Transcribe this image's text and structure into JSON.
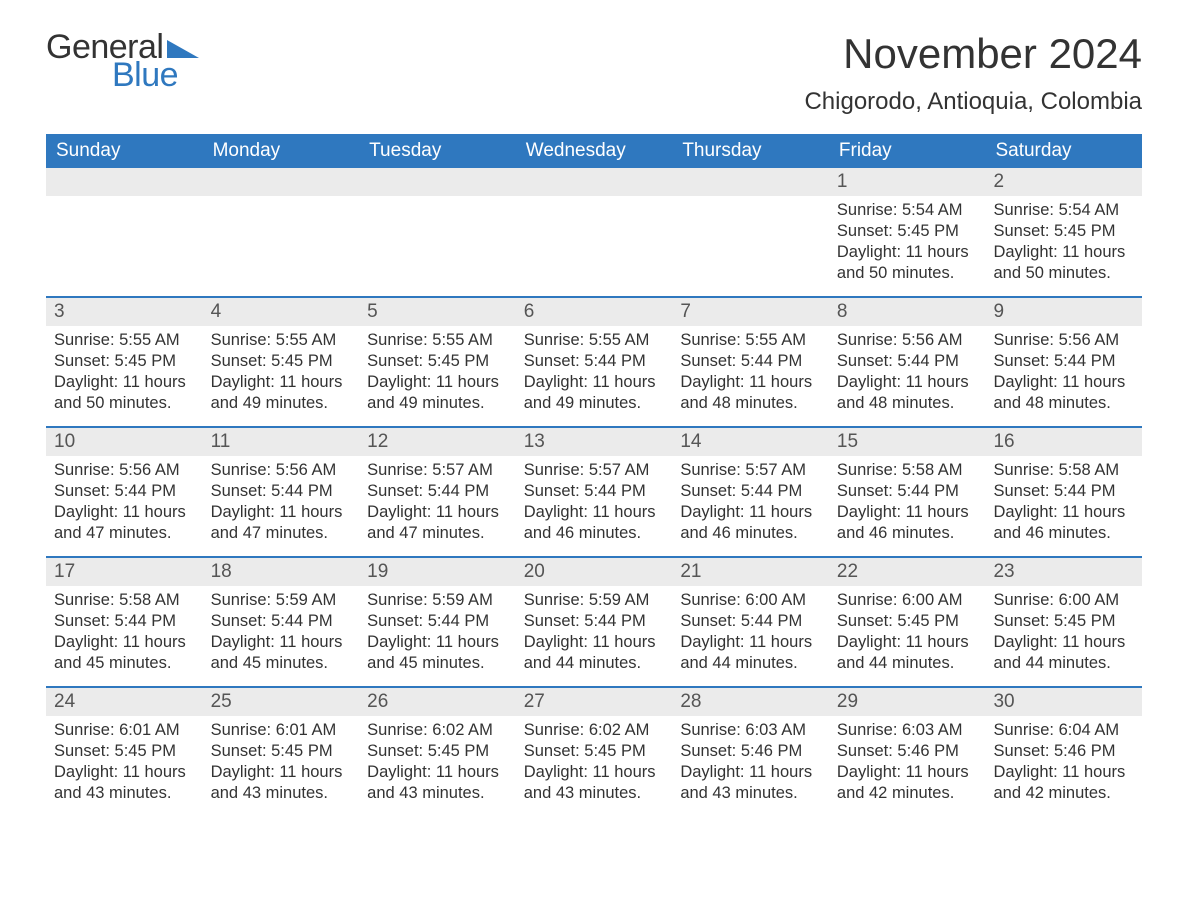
{
  "logo": {
    "text1": "General",
    "text2": "Blue",
    "triangle_color": "#2f78bf"
  },
  "title": "November 2024",
  "location": "Chigorodo, Antioquia, Colombia",
  "colors": {
    "header_bg": "#2f78bf",
    "header_text": "#ffffff",
    "daynum_bg": "#ebebeb",
    "body_bg": "#ffffff",
    "text": "#333333",
    "row_border": "#2f78bf"
  },
  "day_headers": [
    "Sunday",
    "Monday",
    "Tuesday",
    "Wednesday",
    "Thursday",
    "Friday",
    "Saturday"
  ],
  "weeks": [
    [
      null,
      null,
      null,
      null,
      null,
      {
        "n": "1",
        "sunrise": "5:54 AM",
        "sunset": "5:45 PM",
        "daylight": "11 hours and 50 minutes."
      },
      {
        "n": "2",
        "sunrise": "5:54 AM",
        "sunset": "5:45 PM",
        "daylight": "11 hours and 50 minutes."
      }
    ],
    [
      {
        "n": "3",
        "sunrise": "5:55 AM",
        "sunset": "5:45 PM",
        "daylight": "11 hours and 50 minutes."
      },
      {
        "n": "4",
        "sunrise": "5:55 AM",
        "sunset": "5:45 PM",
        "daylight": "11 hours and 49 minutes."
      },
      {
        "n": "5",
        "sunrise": "5:55 AM",
        "sunset": "5:45 PM",
        "daylight": "11 hours and 49 minutes."
      },
      {
        "n": "6",
        "sunrise": "5:55 AM",
        "sunset": "5:44 PM",
        "daylight": "11 hours and 49 minutes."
      },
      {
        "n": "7",
        "sunrise": "5:55 AM",
        "sunset": "5:44 PM",
        "daylight": "11 hours and 48 minutes."
      },
      {
        "n": "8",
        "sunrise": "5:56 AM",
        "sunset": "5:44 PM",
        "daylight": "11 hours and 48 minutes."
      },
      {
        "n": "9",
        "sunrise": "5:56 AM",
        "sunset": "5:44 PM",
        "daylight": "11 hours and 48 minutes."
      }
    ],
    [
      {
        "n": "10",
        "sunrise": "5:56 AM",
        "sunset": "5:44 PM",
        "daylight": "11 hours and 47 minutes."
      },
      {
        "n": "11",
        "sunrise": "5:56 AM",
        "sunset": "5:44 PM",
        "daylight": "11 hours and 47 minutes."
      },
      {
        "n": "12",
        "sunrise": "5:57 AM",
        "sunset": "5:44 PM",
        "daylight": "11 hours and 47 minutes."
      },
      {
        "n": "13",
        "sunrise": "5:57 AM",
        "sunset": "5:44 PM",
        "daylight": "11 hours and 46 minutes."
      },
      {
        "n": "14",
        "sunrise": "5:57 AM",
        "sunset": "5:44 PM",
        "daylight": "11 hours and 46 minutes."
      },
      {
        "n": "15",
        "sunrise": "5:58 AM",
        "sunset": "5:44 PM",
        "daylight": "11 hours and 46 minutes."
      },
      {
        "n": "16",
        "sunrise": "5:58 AM",
        "sunset": "5:44 PM",
        "daylight": "11 hours and 46 minutes."
      }
    ],
    [
      {
        "n": "17",
        "sunrise": "5:58 AM",
        "sunset": "5:44 PM",
        "daylight": "11 hours and 45 minutes."
      },
      {
        "n": "18",
        "sunrise": "5:59 AM",
        "sunset": "5:44 PM",
        "daylight": "11 hours and 45 minutes."
      },
      {
        "n": "19",
        "sunrise": "5:59 AM",
        "sunset": "5:44 PM",
        "daylight": "11 hours and 45 minutes."
      },
      {
        "n": "20",
        "sunrise": "5:59 AM",
        "sunset": "5:44 PM",
        "daylight": "11 hours and 44 minutes."
      },
      {
        "n": "21",
        "sunrise": "6:00 AM",
        "sunset": "5:44 PM",
        "daylight": "11 hours and 44 minutes."
      },
      {
        "n": "22",
        "sunrise": "6:00 AM",
        "sunset": "5:45 PM",
        "daylight": "11 hours and 44 minutes."
      },
      {
        "n": "23",
        "sunrise": "6:00 AM",
        "sunset": "5:45 PM",
        "daylight": "11 hours and 44 minutes."
      }
    ],
    [
      {
        "n": "24",
        "sunrise": "6:01 AM",
        "sunset": "5:45 PM",
        "daylight": "11 hours and 43 minutes."
      },
      {
        "n": "25",
        "sunrise": "6:01 AM",
        "sunset": "5:45 PM",
        "daylight": "11 hours and 43 minutes."
      },
      {
        "n": "26",
        "sunrise": "6:02 AM",
        "sunset": "5:45 PM",
        "daylight": "11 hours and 43 minutes."
      },
      {
        "n": "27",
        "sunrise": "6:02 AM",
        "sunset": "5:45 PM",
        "daylight": "11 hours and 43 minutes."
      },
      {
        "n": "28",
        "sunrise": "6:03 AM",
        "sunset": "5:46 PM",
        "daylight": "11 hours and 43 minutes."
      },
      {
        "n": "29",
        "sunrise": "6:03 AM",
        "sunset": "5:46 PM",
        "daylight": "11 hours and 42 minutes."
      },
      {
        "n": "30",
        "sunrise": "6:04 AM",
        "sunset": "5:46 PM",
        "daylight": "11 hours and 42 minutes."
      }
    ]
  ],
  "labels": {
    "sunrise": "Sunrise:",
    "sunset": "Sunset:",
    "daylight": "Daylight:"
  }
}
